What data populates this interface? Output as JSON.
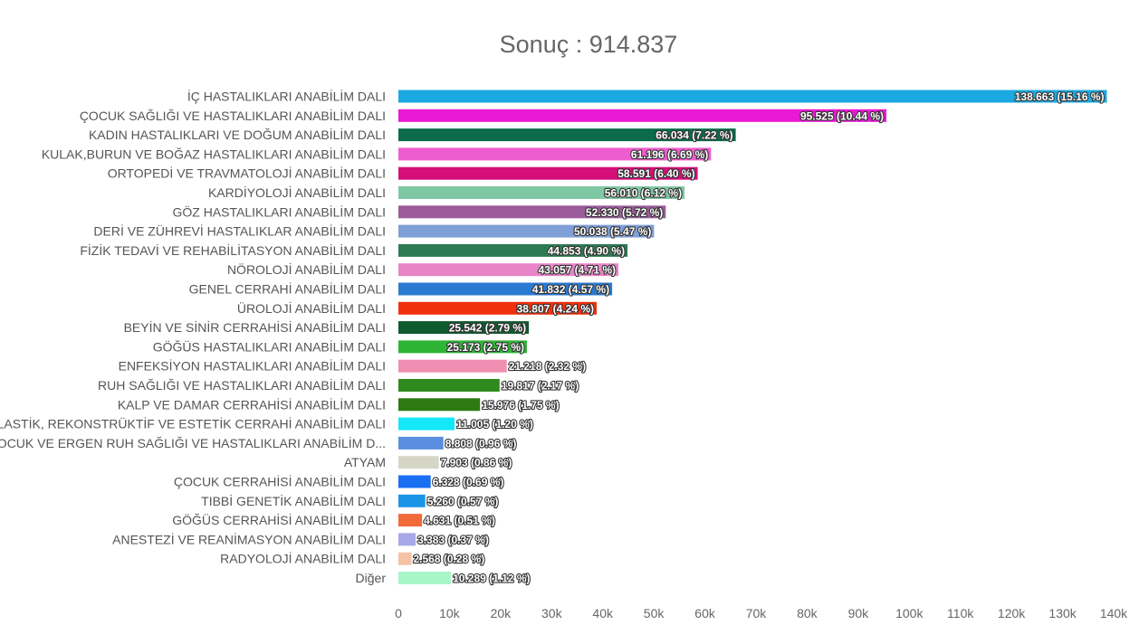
{
  "chart_data": {
    "type": "bar",
    "orientation": "horizontal",
    "title": "Sonuç : 914.837",
    "xlim": [
      0,
      140000
    ],
    "x_ticks": [
      "0",
      "10k",
      "20k",
      "30k",
      "40k",
      "50k",
      "60k",
      "70k",
      "80k",
      "90k",
      "100k",
      "110k",
      "120k",
      "130k",
      "140k"
    ],
    "grid": false,
    "categories": [
      "İÇ HASTALIKLARI ANABİLİM DALI",
      "ÇOCUK SAĞLIĞI VE HASTALIKLARI ANABİLİM DALI",
      "KADIN HASTALIKLARI VE DOĞUM ANABİLİM DALI",
      "KULAK,BURUN VE BOĞAZ HASTALIKLARI ANABİLİM DALI",
      "ORTOPEDİ VE TRAVMATOLOJİ ANABİLİM DALI",
      "KARDİYOLOJİ ANABİLİM DALI",
      "GÖZ HASTALIKLARI ANABİLİM DALI",
      "DERİ VE ZÜHREVİ HASTALIKLAR ANABİLİM DALI",
      "FİZİK TEDAVİ VE REHABİLİTASYON ANABİLİM DALI",
      "NÖROLOJİ ANABİLİM DALI",
      "GENEL CERRAHİ ANABİLİM DALI",
      "ÜROLOJİ ANABİLİM DALI",
      "BEYİN VE SİNİR CERRAHİSİ ANABİLİM DALI",
      "GÖĞÜS HASTALIKLARI ANABİLİM DALI",
      "ENFEKSİYON HASTALIKLARI ANABİLİM DALI",
      "RUH SAĞLIĞI VE HASTALIKLARI ANABİLİM DALI",
      "KALP VE DAMAR CERRAHİSİ ANABİLİM DALI",
      "PLASTİK, REKONSTRÜKTİF VE ESTETİK CERRAHİ ANABİLİM DALI",
      "ÇOCUK VE ERGEN RUH SAĞLIĞI VE HASTALIKLARI ANABİLİM D...",
      "ATYAM",
      "ÇOCUK CERRAHİSİ ANABİLİM DALI",
      "TIBBİ GENETİK ANABİLİM DALI",
      "GÖĞÜS CERRAHİSİ ANABİLİM DALI",
      "ANESTEZİ VE REANİMASYON ANABİLİM DALI",
      "RADYOLOJİ ANABİLİM DALI",
      "Diğer"
    ],
    "values": [
      138663,
      95525,
      66034,
      61196,
      58591,
      56010,
      52330,
      50038,
      44853,
      43057,
      41832,
      38807,
      25542,
      25173,
      21218,
      19817,
      15976,
      11005,
      8808,
      7903,
      6328,
      5260,
      4631,
      3383,
      2568,
      10289
    ],
    "data_labels": [
      "138.663 (15.16 %)",
      "95.525 (10.44 %)",
      "66.034 (7.22 %)",
      "61.196 (6.69 %)",
      "58.591 (6.40 %)",
      "56.010 (6.12 %)",
      "52.330 (5.72 %)",
      "50.038 (5.47 %)",
      "44.853 (4.90 %)",
      "43.057 (4.71 %)",
      "41.832 (4.57 %)",
      "38.807 (4.24 %)",
      "25.542 (2.79 %)",
      "25.173 (2.75 %)",
      "21.218 (2.32 %)",
      "19.817 (2.17 %)",
      "15.976 (1.75 %)",
      "11.005 (1.20 %)",
      "8.808 (0.96 %)",
      "7.903 (0.86 %)",
      "6.328 (0.69 %)",
      "5.260 (0.57 %)",
      "4.631 (0.51 %)",
      "3.383 (0.37 %)",
      "2.568 (0.28 %)",
      "10.289 (1.12 %)"
    ],
    "colors": [
      "#1ba9e2",
      "#ea18d4",
      "#0b6b4b",
      "#ef5ccf",
      "#d40f7a",
      "#7fc8a3",
      "#9b5b9b",
      "#7f9fd7",
      "#2e7a53",
      "#e884c8",
      "#2a7ad2",
      "#f0300d",
      "#0f5a2e",
      "#2fb536",
      "#f08fb1",
      "#2e8a1e",
      "#2e7a12",
      "#14e7f7",
      "#5a8ee0",
      "#d6d6c7",
      "#1a6ef2",
      "#1a94e6",
      "#f26a3a",
      "#a6a8e8",
      "#f5c2a5",
      "#a8f5c8"
    ]
  }
}
